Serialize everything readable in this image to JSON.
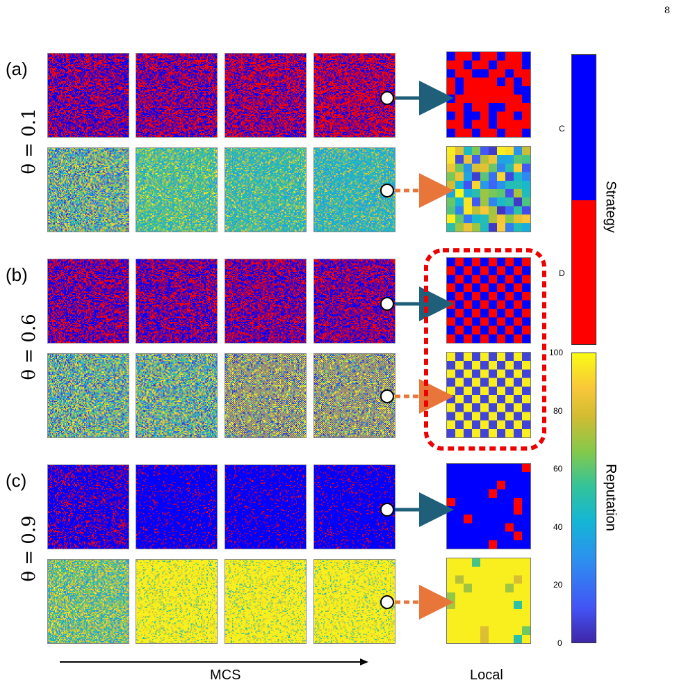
{
  "page_number": "8",
  "panels": [
    {
      "label": "(a)",
      "theta": "θ = 0.1",
      "strategy_coop_fraction": 0.45,
      "reputation_mode": "mixed",
      "local_strategy": [
        [
          1,
          0,
          0,
          1,
          0,
          0,
          1,
          0,
          0,
          1
        ],
        [
          0,
          0,
          1,
          0,
          0,
          1,
          0,
          0,
          0,
          1
        ],
        [
          1,
          0,
          0,
          1,
          1,
          0,
          0,
          1,
          0,
          0
        ],
        [
          0,
          1,
          0,
          0,
          0,
          0,
          1,
          0,
          1,
          0
        ],
        [
          0,
          1,
          0,
          0,
          0,
          0,
          0,
          0,
          1,
          1
        ],
        [
          1,
          0,
          0,
          0,
          0,
          0,
          0,
          0,
          0,
          1
        ],
        [
          0,
          0,
          1,
          0,
          0,
          1,
          1,
          0,
          0,
          0
        ],
        [
          1,
          0,
          1,
          1,
          0,
          1,
          0,
          0,
          1,
          0
        ],
        [
          0,
          0,
          1,
          0,
          0,
          1,
          0,
          0,
          0,
          0
        ],
        [
          1,
          0,
          0,
          1,
          0,
          0,
          1,
          0,
          0,
          1
        ]
      ]
    },
    {
      "label": "(b)",
      "theta": "θ = 0.6",
      "strategy_coop_fraction": 0.55,
      "reputation_mode": "checker",
      "local_strategy": "checker"
    },
    {
      "label": "(c)",
      "theta": "θ = 0.9",
      "strategy_coop_fraction": 0.92,
      "reputation_mode": "high",
      "local_strategy": [
        [
          1,
          1,
          1,
          1,
          1,
          1,
          1,
          1,
          1,
          0
        ],
        [
          1,
          1,
          1,
          1,
          1,
          1,
          1,
          1,
          1,
          1
        ],
        [
          1,
          1,
          1,
          1,
          1,
          1,
          0,
          1,
          1,
          1
        ],
        [
          1,
          1,
          1,
          1,
          1,
          0,
          1,
          1,
          1,
          1
        ],
        [
          0,
          1,
          1,
          1,
          1,
          1,
          1,
          1,
          0,
          1
        ],
        [
          1,
          1,
          1,
          1,
          1,
          1,
          1,
          1,
          0,
          1
        ],
        [
          1,
          1,
          0,
          1,
          1,
          1,
          1,
          1,
          1,
          1
        ],
        [
          1,
          1,
          1,
          1,
          1,
          1,
          1,
          0,
          1,
          1
        ],
        [
          1,
          1,
          1,
          1,
          1,
          1,
          1,
          1,
          0,
          1
        ],
        [
          1,
          1,
          1,
          1,
          1,
          0,
          1,
          1,
          1,
          1
        ]
      ]
    }
  ],
  "colorbar": {
    "strategy_labels": {
      "c": "C",
      "d": "D",
      "title": "Strategy"
    },
    "reputation_ticks": [
      "100",
      "80",
      "60",
      "40",
      "20",
      "0"
    ],
    "reputation_title": "Reputation"
  },
  "axis": {
    "mcs": "MCS",
    "local": "Local"
  },
  "colors": {
    "cooperate": "#0000ff",
    "defect": "#ff0000",
    "solid_arrow": "#1f5f7a",
    "dashed_arrow": "#e8763a",
    "highlight": "#ee0000"
  }
}
